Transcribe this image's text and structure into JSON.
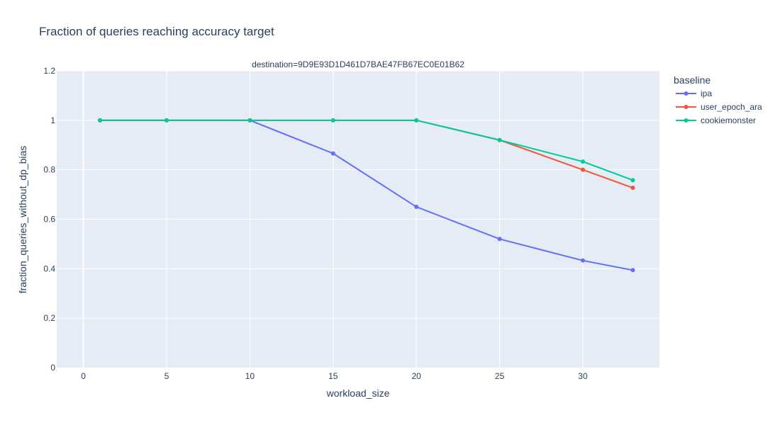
{
  "chart_data": {
    "type": "line",
    "title": "Fraction of queries reaching accuracy target",
    "facet_label": "destination=9D9E93D1D461D7BAE47FB67EC0E01B62",
    "xlabel": "workload_size",
    "ylabel": "fraction_queries_without_dp_bias",
    "xlim": [
      -1.6,
      34.6
    ],
    "ylim": [
      0,
      1.2
    ],
    "x_ticks": [
      0,
      5,
      10,
      15,
      20,
      25,
      30
    ],
    "y_ticks": [
      0,
      0.2,
      0.4,
      0.6,
      0.8,
      1,
      1.2
    ],
    "x_tick_labels": [
      "0",
      "5",
      "10",
      "15",
      "20",
      "25",
      "30"
    ],
    "y_tick_labels": [
      "0",
      "0.2",
      "0.4",
      "0.6",
      "0.8",
      "1",
      "1.2"
    ],
    "grid": true,
    "legend_title": "baseline",
    "legend_position": "right",
    "x": [
      1,
      5,
      10,
      15,
      20,
      25,
      30,
      33
    ],
    "series": [
      {
        "name": "ipa",
        "color": "#636efa",
        "values": [
          1,
          1,
          1,
          0.866,
          0.65,
          0.52,
          0.433,
          0.394
        ]
      },
      {
        "name": "user_epoch_ara",
        "color": "#ef553b",
        "values": [
          1,
          1,
          1,
          1,
          1,
          0.92,
          0.8,
          0.727
        ]
      },
      {
        "name": "cookiemonster",
        "color": "#00cc96",
        "values": [
          1,
          1,
          1,
          1,
          1,
          0.92,
          0.833,
          0.758
        ]
      }
    ],
    "plot_background": "#e5ecf6",
    "grid_color": "#ffffff"
  }
}
